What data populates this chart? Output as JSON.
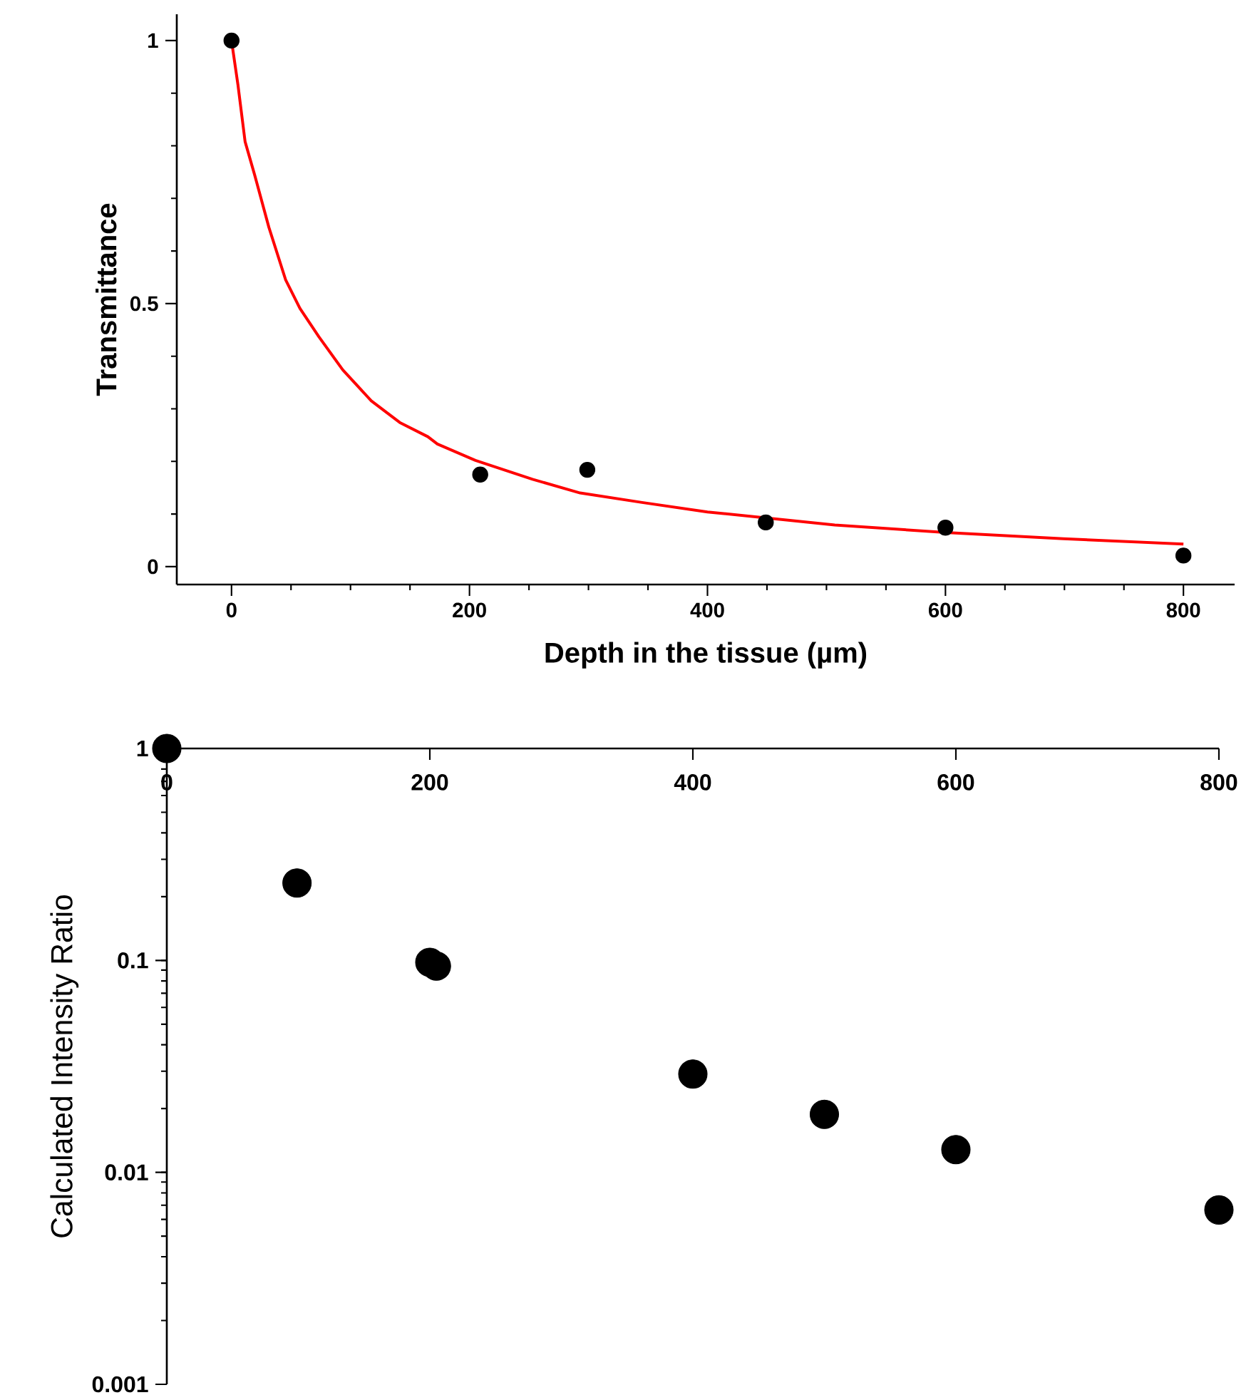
{
  "chart_data": [
    {
      "type": "scatter",
      "xlabel": "Depth in the tissue (µm)",
      "ylabel": "Transmittance",
      "xlim": [
        -46,
        843
      ],
      "ylim": [
        -0.034,
        1.05
      ],
      "xticks": [
        0,
        200,
        400,
        600,
        800
      ],
      "yticks": [
        0,
        0.5,
        1
      ],
      "series": [
        {
          "type": "scatter",
          "marker": "circle",
          "color": "#000000",
          "x": [
            0,
            209,
            299,
            449,
            600,
            800
          ],
          "values": [
            1,
            0.175,
            0.184,
            0.084,
            0.074,
            0.021
          ]
        },
        {
          "type": "line",
          "marker": "none",
          "color": "#ff0000",
          "x": [
            0,
            5.4,
            11.4,
            19.4,
            31.4,
            45.5,
            57.5,
            73.4,
            93.5,
            117.5,
            141.4,
            165,
            173,
            205,
            253,
            293,
            345,
            400,
            507,
            600,
            699,
            800
          ],
          "values": [
            1,
            0.916,
            0.808,
            0.745,
            0.645,
            0.545,
            0.491,
            0.437,
            0.374,
            0.315,
            0.274,
            0.247,
            0.233,
            0.202,
            0.166,
            0.14,
            0.122,
            0.104,
            0.079,
            0.065,
            0.053,
            0.043
          ]
        }
      ]
    },
    {
      "type": "scatter",
      "ylabel": "Calculated Intensity Ratio",
      "log": "y",
      "xlim": [
        0,
        800
      ],
      "ylim": [
        0.001,
        1
      ],
      "xticks": [
        0,
        200,
        400,
        600,
        800
      ],
      "yticks": [
        0.001,
        0.01,
        0.1,
        1
      ],
      "marker": "circle",
      "color": "#000000",
      "x": [
        0,
        99,
        200,
        205,
        400,
        500,
        600,
        800
      ],
      "values": [
        1,
        0.232,
        0.098,
        0.094,
        0.0291,
        0.0188,
        0.0128,
        0.00665
      ]
    }
  ]
}
